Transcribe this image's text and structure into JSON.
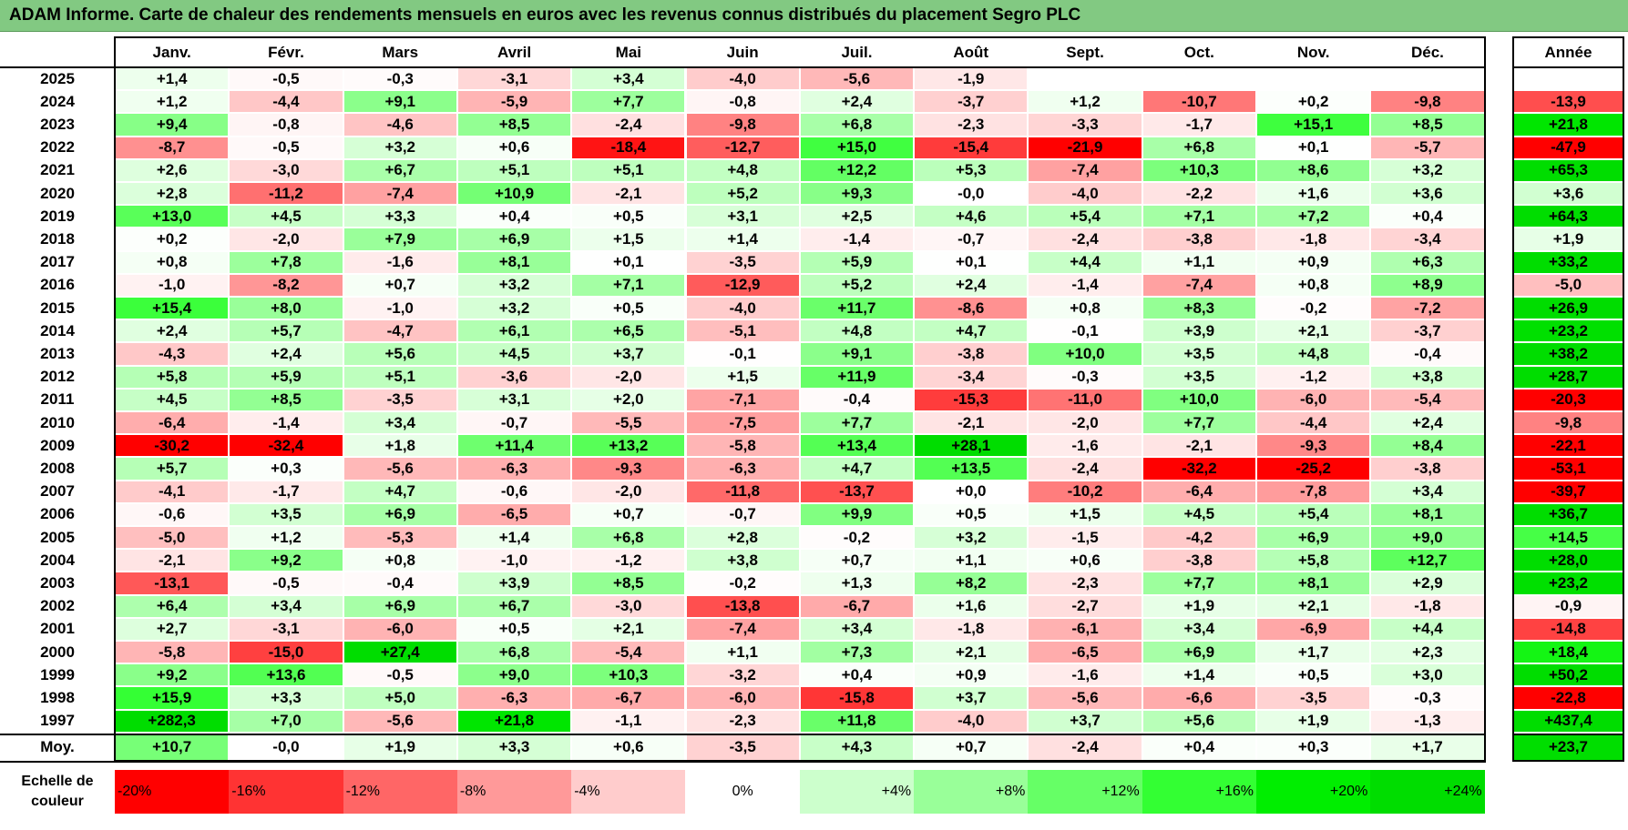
{
  "title": "ADAM Informe. Carte de chaleur des rendements mensuels en euros avec les revenus connus distribués du placement Segro PLC",
  "chart_data": {
    "type": "heatmap",
    "columns": [
      "Janv.",
      "Févr.",
      "Mars",
      "Avril",
      "Mai",
      "Juin",
      "Juil.",
      "Août",
      "Sept.",
      "Oct.",
      "Nov.",
      "Déc."
    ],
    "year_column_label": "Année",
    "average_row_label": "Moy.",
    "rows": [
      {
        "year": "2025",
        "values": [
          "+1,4",
          "-0,5",
          "-0,3",
          "-3,1",
          "+3,4",
          "-4,0",
          "-5,6",
          "-1,9",
          "",
          "",
          "",
          ""
        ],
        "annual": ""
      },
      {
        "year": "2024",
        "values": [
          "+1,2",
          "-4,4",
          "+9,1",
          "-5,9",
          "+7,7",
          "-0,8",
          "+2,4",
          "-3,7",
          "+1,2",
          "-10,7",
          "+0,2",
          "-9,8"
        ],
        "annual": "-13,9"
      },
      {
        "year": "2023",
        "values": [
          "+9,4",
          "-0,8",
          "-4,6",
          "+8,5",
          "-2,4",
          "-9,8",
          "+6,8",
          "-2,3",
          "-3,3",
          "-1,7",
          "+15,1",
          "+8,5"
        ],
        "annual": "+21,8"
      },
      {
        "year": "2022",
        "values": [
          "-8,7",
          "-0,5",
          "+3,2",
          "+0,6",
          "-18,4",
          "-12,7",
          "+15,0",
          "-15,4",
          "-21,9",
          "+6,8",
          "+0,1",
          "-5,7"
        ],
        "annual": "-47,9"
      },
      {
        "year": "2021",
        "values": [
          "+2,6",
          "-3,0",
          "+6,7",
          "+5,1",
          "+5,1",
          "+4,8",
          "+12,2",
          "+5,3",
          "-7,4",
          "+10,3",
          "+8,6",
          "+3,2"
        ],
        "annual": "+65,3"
      },
      {
        "year": "2020",
        "values": [
          "+2,8",
          "-11,2",
          "-7,4",
          "+10,9",
          "-2,1",
          "+5,2",
          "+9,3",
          "-0,0",
          "-4,0",
          "-2,2",
          "+1,6",
          "+3,6"
        ],
        "annual": "+3,6"
      },
      {
        "year": "2019",
        "values": [
          "+13,0",
          "+4,5",
          "+3,3",
          "+0,4",
          "+0,5",
          "+3,1",
          "+2,5",
          "+4,6",
          "+5,4",
          "+7,1",
          "+7,2",
          "+0,4"
        ],
        "annual": "+64,3"
      },
      {
        "year": "2018",
        "values": [
          "+0,2",
          "-2,0",
          "+7,9",
          "+6,9",
          "+1,5",
          "+1,4",
          "-1,4",
          "-0,7",
          "-2,4",
          "-3,8",
          "-1,8",
          "-3,4"
        ],
        "annual": "+1,9"
      },
      {
        "year": "2017",
        "values": [
          "+0,8",
          "+7,8",
          "-1,6",
          "+8,1",
          "+0,1",
          "-3,5",
          "+5,9",
          "+0,1",
          "+4,4",
          "+1,1",
          "+0,9",
          "+6,3"
        ],
        "annual": "+33,2"
      },
      {
        "year": "2016",
        "values": [
          "-1,0",
          "-8,2",
          "+0,7",
          "+3,2",
          "+7,1",
          "-12,9",
          "+5,2",
          "+2,4",
          "-1,4",
          "-7,4",
          "+0,8",
          "+8,9"
        ],
        "annual": "-5,0"
      },
      {
        "year": "2015",
        "values": [
          "+15,4",
          "+8,0",
          "-1,0",
          "+3,2",
          "+0,5",
          "-4,0",
          "+11,7",
          "-8,6",
          "+0,8",
          "+8,3",
          "-0,2",
          "-7,2"
        ],
        "annual": "+26,9"
      },
      {
        "year": "2014",
        "values": [
          "+2,4",
          "+5,7",
          "-4,7",
          "+6,1",
          "+6,5",
          "-5,1",
          "+4,8",
          "+4,7",
          "-0,1",
          "+3,9",
          "+2,1",
          "-3,7"
        ],
        "annual": "+23,2"
      },
      {
        "year": "2013",
        "values": [
          "-4,3",
          "+2,4",
          "+5,6",
          "+4,5",
          "+3,7",
          "-0,1",
          "+9,1",
          "-3,8",
          "+10,0",
          "+3,5",
          "+4,8",
          "-0,4"
        ],
        "annual": "+38,2"
      },
      {
        "year": "2012",
        "values": [
          "+5,8",
          "+5,9",
          "+5,1",
          "-3,6",
          "-2,0",
          "+1,5",
          "+11,9",
          "-3,4",
          "-0,3",
          "+3,5",
          "-1,2",
          "+3,8"
        ],
        "annual": "+28,7"
      },
      {
        "year": "2011",
        "values": [
          "+4,5",
          "+8,5",
          "-3,5",
          "+3,1",
          "+2,0",
          "-7,1",
          "-0,4",
          "-15,3",
          "-11,0",
          "+10,0",
          "-6,0",
          "-5,4"
        ],
        "annual": "-20,3"
      },
      {
        "year": "2010",
        "values": [
          "-6,4",
          "-1,4",
          "+3,4",
          "-0,7",
          "-5,5",
          "-7,5",
          "+7,7",
          "-2,1",
          "-2,0",
          "+7,7",
          "-4,4",
          "+2,4"
        ],
        "annual": "-9,8"
      },
      {
        "year": "2009",
        "values": [
          "-30,2",
          "-32,4",
          "+1,8",
          "+11,4",
          "+13,2",
          "-5,8",
          "+13,4",
          "+28,1",
          "-1,6",
          "-2,1",
          "-9,3",
          "+8,4"
        ],
        "annual": "-22,1"
      },
      {
        "year": "2008",
        "values": [
          "+5,7",
          "+0,3",
          "-5,6",
          "-6,3",
          "-9,3",
          "-6,3",
          "+4,7",
          "+13,5",
          "-2,4",
          "-32,2",
          "-25,2",
          "-3,8"
        ],
        "annual": "-53,1"
      },
      {
        "year": "2007",
        "values": [
          "-4,1",
          "-1,7",
          "+4,7",
          "-0,6",
          "-2,0",
          "-11,8",
          "-13,7",
          "+0,0",
          "-10,2",
          "-6,4",
          "-7,8",
          "+3,4"
        ],
        "annual": "-39,7"
      },
      {
        "year": "2006",
        "values": [
          "-0,6",
          "+3,5",
          "+6,9",
          "-6,5",
          "+0,7",
          "-0,7",
          "+9,9",
          "+0,5",
          "+1,5",
          "+4,5",
          "+5,4",
          "+8,1"
        ],
        "annual": "+36,7"
      },
      {
        "year": "2005",
        "values": [
          "-5,0",
          "+1,2",
          "-5,3",
          "+1,4",
          "+6,8",
          "+2,8",
          "-0,2",
          "+3,2",
          "-1,5",
          "-4,2",
          "+6,9",
          "+9,0"
        ],
        "annual": "+14,5"
      },
      {
        "year": "2004",
        "values": [
          "-2,1",
          "+9,2",
          "+0,8",
          "-1,0",
          "-1,2",
          "+3,8",
          "+0,7",
          "+1,1",
          "+0,6",
          "-3,8",
          "+5,8",
          "+12,7"
        ],
        "annual": "+28,0"
      },
      {
        "year": "2003",
        "values": [
          "-13,1",
          "-0,5",
          "-0,4",
          "+3,9",
          "+8,5",
          "-0,2",
          "+1,3",
          "+8,2",
          "-2,3",
          "+7,7",
          "+8,1",
          "+2,9"
        ],
        "annual": "+23,2"
      },
      {
        "year": "2002",
        "values": [
          "+6,4",
          "+3,4",
          "+6,9",
          "+6,7",
          "-3,0",
          "-13,8",
          "-6,7",
          "+1,6",
          "-2,7",
          "+1,9",
          "+2,1",
          "-1,8"
        ],
        "annual": "-0,9"
      },
      {
        "year": "2001",
        "values": [
          "+2,7",
          "-3,1",
          "-6,0",
          "+0,5",
          "+2,1",
          "-7,4",
          "+3,4",
          "-1,8",
          "-6,1",
          "+3,4",
          "-6,9",
          "+4,4"
        ],
        "annual": "-14,8"
      },
      {
        "year": "2000",
        "values": [
          "-5,8",
          "-15,0",
          "+27,4",
          "+6,8",
          "-5,4",
          "+1,1",
          "+7,3",
          "+2,1",
          "-6,5",
          "+6,9",
          "+1,7",
          "+2,3"
        ],
        "annual": "+18,4"
      },
      {
        "year": "1999",
        "values": [
          "+9,2",
          "+13,6",
          "-0,5",
          "+9,0",
          "+10,3",
          "-3,2",
          "+0,4",
          "+0,9",
          "-1,6",
          "+1,4",
          "+0,5",
          "+3,0"
        ],
        "annual": "+50,2"
      },
      {
        "year": "1998",
        "values": [
          "+15,9",
          "+3,3",
          "+5,0",
          "-6,3",
          "-6,7",
          "-6,0",
          "-15,8",
          "+3,7",
          "-5,6",
          "-6,6",
          "-3,5",
          "-0,3"
        ],
        "annual": "-22,8"
      },
      {
        "year": "1997",
        "values": [
          "+282,3",
          "+7,0",
          "-5,6",
          "+21,8",
          "-1,1",
          "-2,3",
          "+11,8",
          "-4,0",
          "+3,7",
          "+5,6",
          "+1,9",
          "-1,3"
        ],
        "annual": "+437,4"
      }
    ],
    "average": {
      "values": [
        "+10,7",
        "-0,0",
        "+1,9",
        "+3,3",
        "+0,6",
        "-3,5",
        "+4,3",
        "+0,7",
        "-2,4",
        "+0,4",
        "+0,3",
        "+1,7"
      ],
      "annual": "+23,7"
    },
    "color_scale": {
      "label": "Echelle de couleur",
      "stops": [
        {
          "label": "-20%",
          "value": -20,
          "color": "#ff0000"
        },
        {
          "label": "-16%",
          "value": -16,
          "color": "#ff3333"
        },
        {
          "label": "-12%",
          "value": -12,
          "color": "#ff6666"
        },
        {
          "label": "-8%",
          "value": -8,
          "color": "#ff9999"
        },
        {
          "label": "-4%",
          "value": -4,
          "color": "#ffcccc"
        },
        {
          "label": "0%",
          "value": 0,
          "color": "#ffffff"
        },
        {
          "label": "+4%",
          "value": 4,
          "color": "#ccffcc"
        },
        {
          "label": "+8%",
          "value": 8,
          "color": "#99ff99"
        },
        {
          "label": "+12%",
          "value": 12,
          "color": "#66ff66"
        },
        {
          "label": "+16%",
          "value": 16,
          "color": "#33ff33"
        },
        {
          "label": "+20%",
          "value": 20,
          "color": "#00ee00"
        },
        {
          "label": "+24%",
          "value": 24,
          "color": "#00dd00"
        }
      ]
    }
  }
}
